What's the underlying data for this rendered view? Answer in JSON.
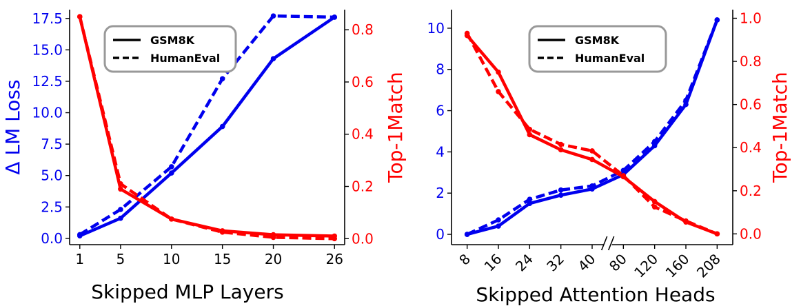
{
  "colors": {
    "loss": "#0000ee",
    "match": "#ff0000",
    "axis": "#000000",
    "legend_border": "#999999"
  },
  "legend": {
    "solid": "GSM8K",
    "dashed": "HumanEval"
  },
  "chart_data": [
    {
      "type": "line",
      "xlabel": "Skipped MLP Layers",
      "ylabel_left": "Δ LM Loss",
      "ylabel_right": "Top-1Match",
      "x": [
        1,
        5,
        10,
        15,
        20,
        26
      ],
      "x_tick_labels": [
        "1",
        "5",
        "10",
        "15",
        "20",
        "26"
      ],
      "x_range": [
        0,
        27
      ],
      "ylim_left": [
        -0.5,
        18.2
      ],
      "ylim_right": [
        -0.023,
        0.877
      ],
      "y_ticks_left": [
        0.0,
        2.5,
        5.0,
        7.5,
        10.0,
        12.5,
        15.0,
        17.5
      ],
      "y_tick_labels_left": [
        "0.0",
        "2.5",
        "5.0",
        "7.5",
        "10.0",
        "12.5",
        "15.0",
        "17.5"
      ],
      "y_ticks_right": [
        0.0,
        0.2,
        0.4,
        0.6,
        0.8
      ],
      "y_tick_labels_right": [
        "0.0",
        "0.2",
        "0.4",
        "0.6",
        "0.8"
      ],
      "series": [
        {
          "name": "GSM8K",
          "axis": "left",
          "style": "solid",
          "values": [
            0.2,
            1.6,
            5.2,
            8.9,
            14.3,
            17.6
          ]
        },
        {
          "name": "HumanEval",
          "axis": "left",
          "style": "dashed",
          "values": [
            0.3,
            2.3,
            5.7,
            12.7,
            17.7,
            17.6
          ]
        },
        {
          "name": "GSM8K",
          "axis": "right",
          "style": "solid",
          "values": [
            0.85,
            0.19,
            0.075,
            0.03,
            0.015,
            0.01
          ]
        },
        {
          "name": "HumanEval",
          "axis": "right",
          "style": "dashed",
          "values": [
            0.85,
            0.21,
            0.075,
            0.025,
            0.005,
            0.0
          ]
        }
      ],
      "legend_position": "upper-left"
    },
    {
      "type": "line",
      "xlabel": "Skipped Attention Heads",
      "ylabel_left": "",
      "ylabel_right": "Top-1Match",
      "x_tick_labels": [
        "8",
        "16",
        "24",
        "32",
        "40",
        "80",
        "120",
        "160",
        "208"
      ],
      "x_range": [
        -0.5,
        8.5
      ],
      "axis_break_between": [
        "40",
        "80"
      ],
      "ylim_left": [
        -0.5,
        10.9
      ],
      "ylim_right": [
        -0.05,
        1.04
      ],
      "y_ticks_left": [
        0,
        2,
        4,
        6,
        8,
        10
      ],
      "y_tick_labels_left": [
        "0",
        "2",
        "4",
        "6",
        "8",
        "10"
      ],
      "y_ticks_right": [
        0.0,
        0.2,
        0.4,
        0.6,
        0.8,
        1.0
      ],
      "y_tick_labels_right": [
        "0.0",
        "0.2",
        "0.4",
        "0.6",
        "0.8",
        "1.0"
      ],
      "series": [
        {
          "name": "GSM8K",
          "axis": "left",
          "style": "solid",
          "values": [
            0.0,
            0.4,
            1.5,
            1.9,
            2.2,
            2.9,
            4.3,
            6.3,
            10.4
          ]
        },
        {
          "name": "HumanEval",
          "axis": "left",
          "style": "dashed",
          "values": [
            0.0,
            0.7,
            1.7,
            2.15,
            2.35,
            3.1,
            4.5,
            6.5,
            10.4
          ]
        },
        {
          "name": "GSM8K",
          "axis": "right",
          "style": "solid",
          "values": [
            0.92,
            0.75,
            0.46,
            0.39,
            0.345,
            0.265,
            0.15,
            0.055,
            0.0
          ]
        },
        {
          "name": "HumanEval",
          "axis": "right",
          "style": "dashed",
          "values": [
            0.93,
            0.66,
            0.485,
            0.415,
            0.385,
            0.27,
            0.125,
            0.06,
            0.0
          ]
        }
      ],
      "legend_position": "upper-center"
    }
  ]
}
